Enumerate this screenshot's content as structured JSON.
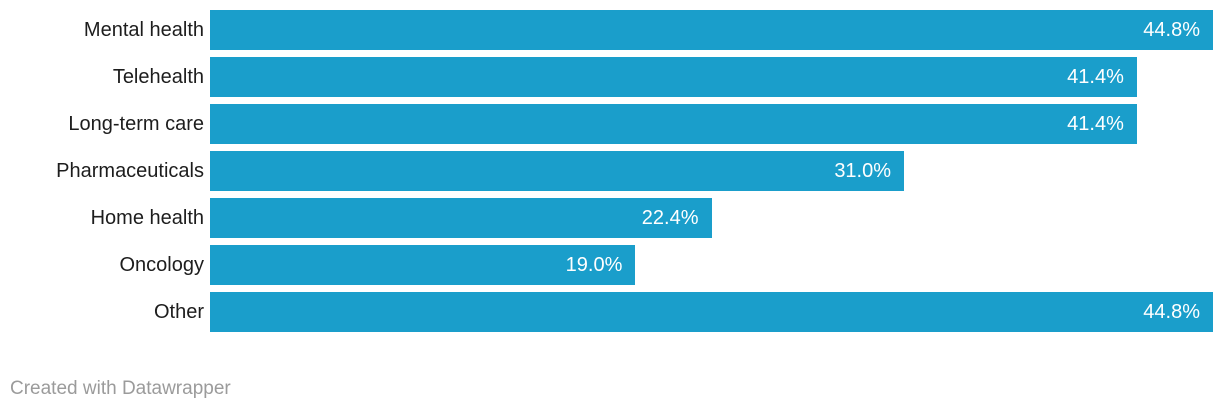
{
  "chart_data": {
    "type": "bar",
    "orientation": "horizontal",
    "title": "",
    "xlabel": "",
    "ylabel": "",
    "categories": [
      "Mental health",
      "Telehealth",
      "Long-term care",
      "Pharmaceuticals",
      "Home health",
      "Oncology",
      "Other"
    ],
    "values": [
      44.8,
      41.4,
      41.4,
      31.0,
      22.4,
      19.0,
      44.8
    ],
    "value_labels": [
      "44.8%",
      "41.4%",
      "41.4%",
      "31.0%",
      "22.4%",
      "19.0%",
      "44.8%"
    ],
    "xlim": [
      0,
      44.8
    ],
    "grid": "off",
    "legend": "none",
    "bar_color": "#1a9ecb"
  },
  "colors": {
    "bar": "#1a9ecb",
    "category_text": "#1d1d1d",
    "value_text": "#ffffff",
    "footer_text": "#9b9b9b",
    "background": "#ffffff"
  },
  "footer": {
    "attribution": "Created with Datawrapper"
  }
}
